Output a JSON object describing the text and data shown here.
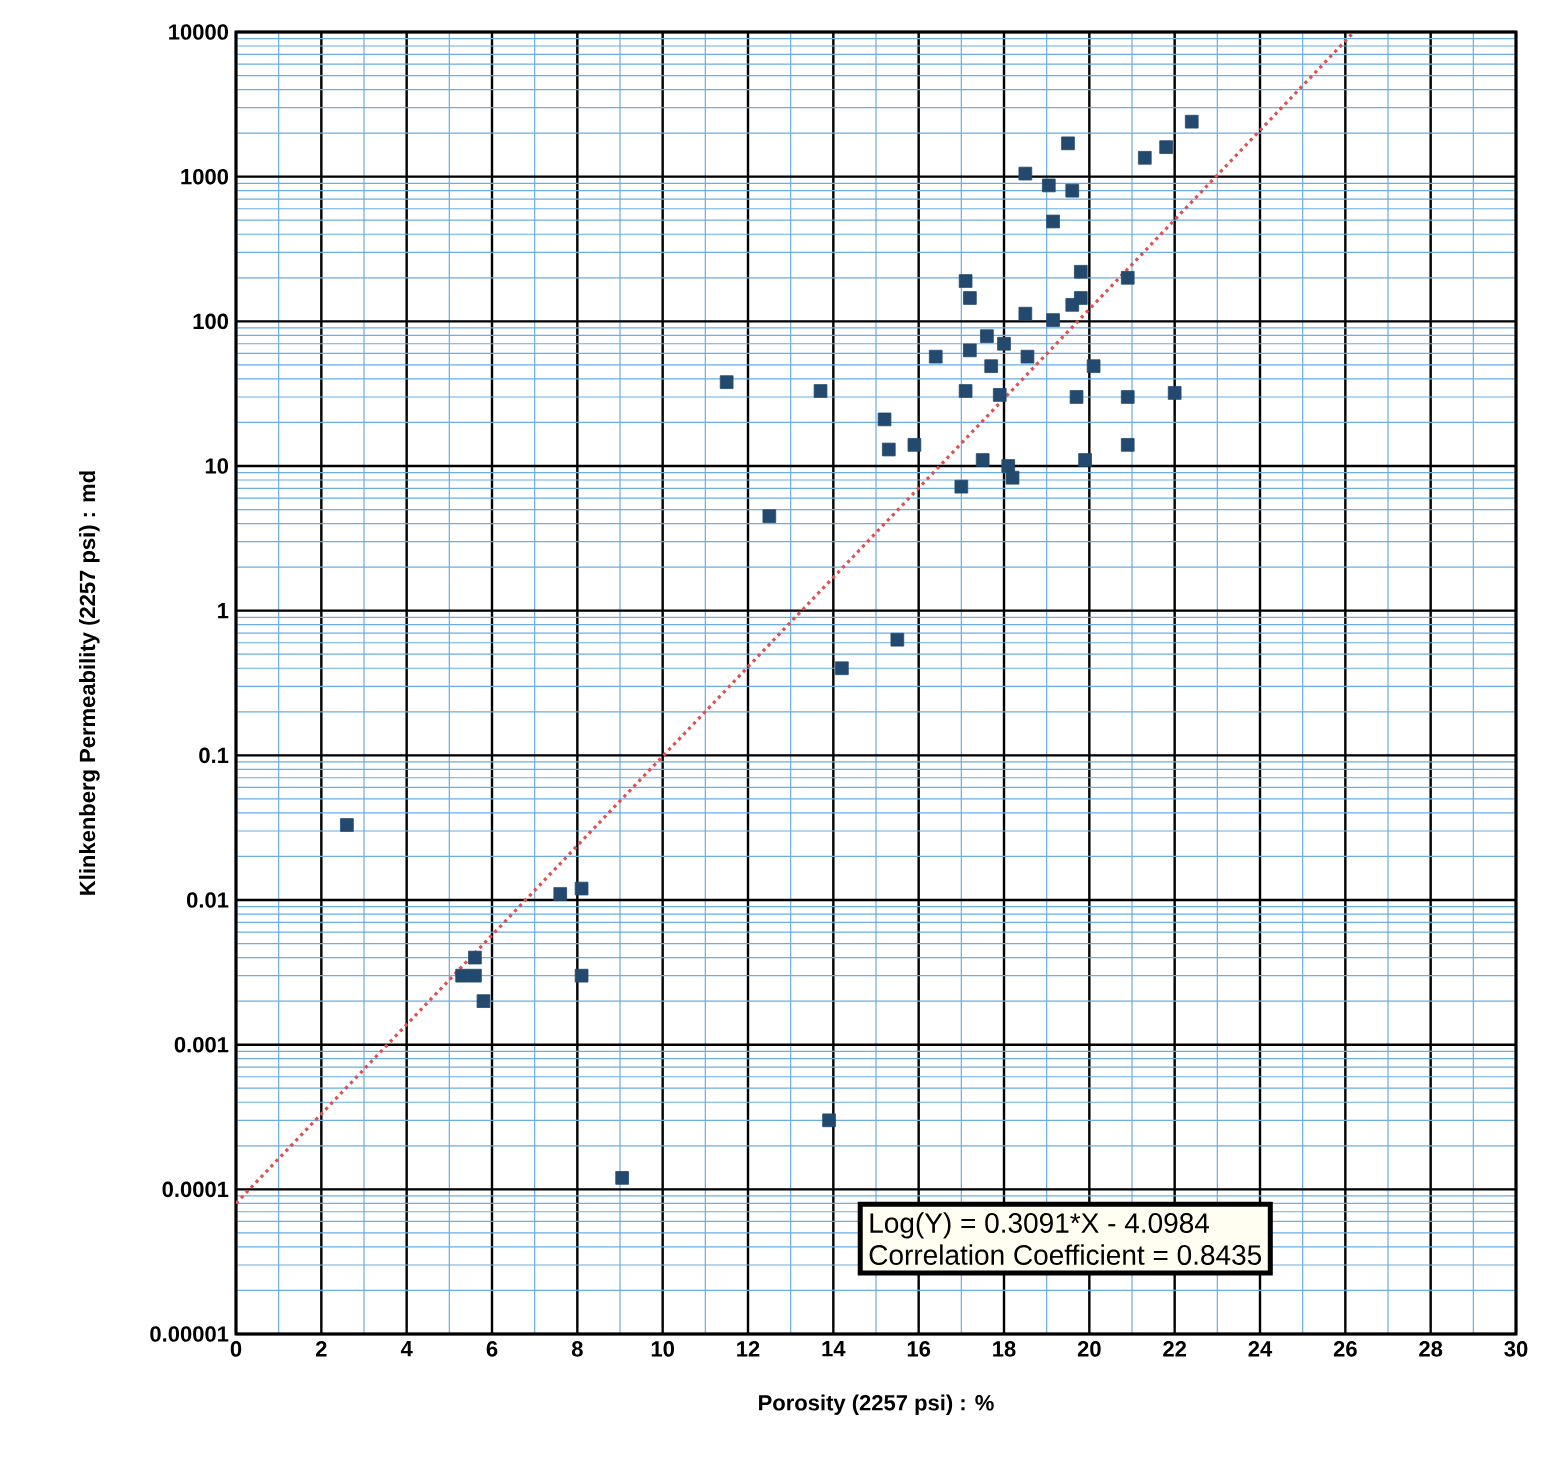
{
  "chart_data": {
    "type": "scatter",
    "xlabel": "Porosity (2257 psi) : %",
    "ylabel": "Klinkenberg Permeability (2257 psi) : md",
    "log": "y",
    "grid": true,
    "xlim": [
      0,
      30
    ],
    "ylim": [
      1e-05,
      10000
    ],
    "xticks": [
      0,
      2,
      4,
      6,
      8,
      10,
      12,
      14,
      16,
      18,
      20,
      22,
      24,
      26,
      28,
      30
    ],
    "yticks": [
      {
        "value": 1e-05,
        "label": "0.00001"
      },
      {
        "value": 0.0001,
        "label": "0.0001"
      },
      {
        "value": 0.001,
        "label": "0.001"
      },
      {
        "value": 0.01,
        "label": "0.01"
      },
      {
        "value": 0.1,
        "label": "0.1"
      },
      {
        "value": 1,
        "label": "1"
      },
      {
        "value": 10,
        "label": "10"
      },
      {
        "value": 100,
        "label": "100"
      },
      {
        "value": 1000,
        "label": "1000"
      },
      {
        "value": 10000,
        "label": "10000"
      }
    ],
    "series": [
      {
        "marker": "square",
        "color": "#234a6e",
        "x": [
          2.6,
          7.6,
          8.1,
          5.6,
          5.3,
          5.6,
          5.8,
          8.1,
          9.05,
          14.2,
          15.5,
          13.9,
          22.4,
          21.8,
          21.3,
          19.5,
          18.5,
          19.05,
          19.6,
          19.15,
          19.8,
          20.9,
          17.1,
          17.2,
          19.8,
          19.6,
          18.5,
          19.15,
          17.6,
          18.0,
          17.2,
          16.4,
          18.55,
          17.7,
          20.1,
          11.5,
          13.7,
          17.1,
          17.9,
          19.7,
          20.9,
          22.0,
          15.2,
          15.3,
          15.9,
          20.9,
          17.5,
          18.1,
          18.2,
          19.9,
          17.0,
          12.5
        ],
        "values": [
          0.033,
          0.011,
          0.012,
          0.004,
          0.003,
          0.003,
          0.002,
          0.003,
          0.00012,
          0.4,
          0.63,
          0.0003,
          2400,
          1600,
          1350,
          1700,
          1050,
          870,
          800,
          490,
          220,
          200,
          190,
          145,
          145,
          130,
          113,
          102,
          79,
          70,
          63,
          57,
          57,
          49,
          49,
          38,
          33,
          33,
          31,
          30,
          30,
          32,
          21,
          13,
          14,
          14,
          11,
          10,
          8.3,
          11,
          7.2,
          4.5
        ]
      },
      {
        "type": "line",
        "color": "#e05050",
        "line_style": "dotted",
        "x": [
          0,
          26.2
        ],
        "values": [
          8e-05,
          10000
        ]
      }
    ],
    "annotations": [
      "Log(Y) = 0.3091*X - 4.0984",
      "Correlation Coefficient = 0.8435"
    ]
  }
}
